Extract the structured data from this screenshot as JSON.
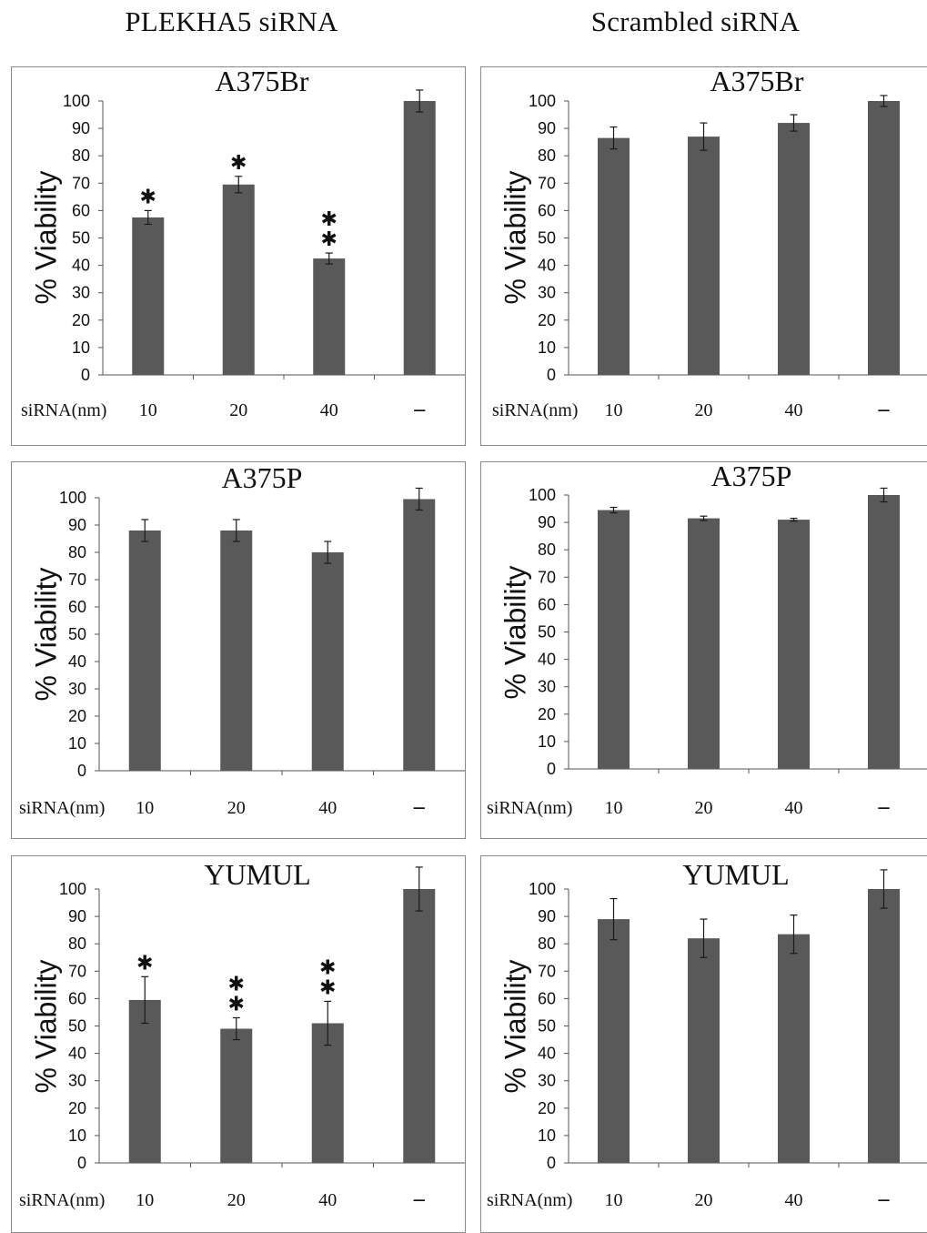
{
  "column_headers": [
    "PLEKHA5 siRNA",
    "Scrambled siRNA"
  ],
  "colors": {
    "bar": "#595959",
    "axis": "#555555",
    "text": "#111111",
    "panel_border": "#8a8a8a"
  },
  "chart_data": [
    {
      "type": "bar",
      "title": "A375Br",
      "column": "PLEKHA5 siRNA",
      "ylabel": "% Viability",
      "xlabel": "siRNA(nm)",
      "ylim": [
        0,
        100
      ],
      "yticks": [
        0,
        10,
        20,
        30,
        40,
        50,
        60,
        70,
        80,
        90,
        100
      ],
      "categories": [
        "10",
        "20",
        "40",
        "–"
      ],
      "values": [
        57.5,
        69.5,
        42.5,
        100
      ],
      "errors": [
        2.5,
        3,
        2,
        4
      ],
      "annotations": [
        "✱",
        "✱",
        "✱✱",
        ""
      ]
    },
    {
      "type": "bar",
      "title": "A375Br",
      "column": "Scrambled siRNA",
      "ylabel": "% Viability",
      "xlabel": "siRNA(nm)",
      "ylim": [
        0,
        100
      ],
      "yticks": [
        0,
        10,
        20,
        30,
        40,
        50,
        60,
        70,
        80,
        90,
        100
      ],
      "categories": [
        "10",
        "20",
        "40",
        "–"
      ],
      "values": [
        86.5,
        87,
        92,
        100
      ],
      "errors": [
        4,
        5,
        3,
        2
      ],
      "annotations": [
        "",
        "",
        "",
        ""
      ]
    },
    {
      "type": "bar",
      "title": "A375P",
      "column": "PLEKHA5 siRNA",
      "ylabel": "% Viability",
      "xlabel": "siRNA(nm)",
      "ylim": [
        0,
        100
      ],
      "yticks": [
        0,
        10,
        20,
        30,
        40,
        50,
        60,
        70,
        80,
        90,
        100
      ],
      "categories": [
        "10",
        "20",
        "40",
        "–"
      ],
      "values": [
        88,
        88,
        80,
        99.5
      ],
      "errors": [
        4,
        4,
        4,
        4
      ],
      "annotations": [
        "",
        "",
        "",
        ""
      ]
    },
    {
      "type": "bar",
      "title": "A375P",
      "column": "Scrambled siRNA",
      "ylabel": "% Viability",
      "xlabel": "siRNA(nm)",
      "ylim": [
        0,
        100
      ],
      "yticks": [
        0,
        10,
        20,
        30,
        40,
        50,
        60,
        70,
        80,
        90,
        100
      ],
      "categories": [
        "10",
        "20",
        "40",
        "–"
      ],
      "values": [
        94.5,
        91.5,
        91,
        100
      ],
      "errors": [
        1,
        0.8,
        0.5,
        2.5
      ],
      "annotations": [
        "",
        "",
        "",
        ""
      ]
    },
    {
      "type": "bar",
      "title": "YUMUL",
      "column": "PLEKHA5 siRNA",
      "ylabel": "% Viability",
      "xlabel": "siRNA(nm)",
      "ylim": [
        0,
        100
      ],
      "yticks": [
        0,
        10,
        20,
        30,
        40,
        50,
        60,
        70,
        80,
        90,
        100
      ],
      "categories": [
        "10",
        "20",
        "40",
        "–"
      ],
      "values": [
        59.5,
        49,
        51,
        100
      ],
      "errors": [
        8.5,
        4,
        8,
        8
      ],
      "annotations": [
        "✱",
        "✱✱",
        "✱✱",
        ""
      ]
    },
    {
      "type": "bar",
      "title": "YUMUL",
      "column": "Scrambled siRNA",
      "ylabel": "% Viability",
      "xlabel": "siRNA(nm)",
      "ylim": [
        0,
        100
      ],
      "yticks": [
        0,
        10,
        20,
        30,
        40,
        50,
        60,
        70,
        80,
        90,
        100
      ],
      "categories": [
        "10",
        "20",
        "40",
        "–"
      ],
      "values": [
        89,
        82,
        83.5,
        100
      ],
      "errors": [
        7.5,
        7,
        7,
        7
      ],
      "annotations": [
        "",
        "",
        "",
        ""
      ]
    }
  ]
}
